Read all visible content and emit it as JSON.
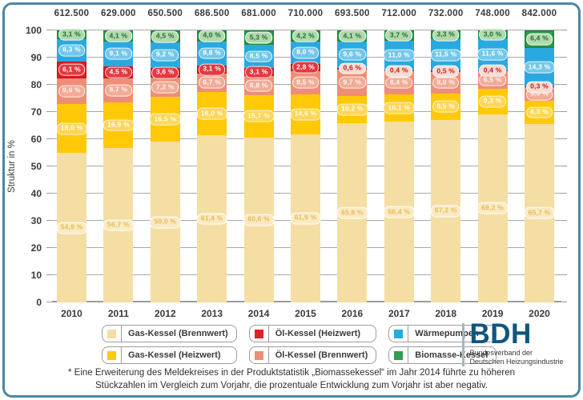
{
  "chart_data": {
    "type": "bar",
    "variant": "stacked-100-percent",
    "title": "",
    "ylabel": "Struktur in %",
    "ylim": [
      0,
      100
    ],
    "ytick_step": 10,
    "grid": true,
    "legend_position": "bottom",
    "categories": [
      "2010",
      "2011",
      "2012",
      "2013",
      "2014",
      "2015",
      "2016",
      "2017",
      "2018",
      "2019",
      "2020"
    ],
    "totals": [
      "612.500",
      "629.000",
      "650.500",
      "686.500",
      "681.000",
      "710.000",
      "693.500",
      "712.000",
      "732.000",
      "748.000",
      "842.000"
    ],
    "series": [
      {
        "name": "Gas-Kessel (Brennwert)",
        "key": "cream",
        "color": "#F5DEA3",
        "values": [
          54.9,
          56.7,
          59.0,
          61.4,
          60.6,
          61.9,
          65.8,
          66.4,
          67.2,
          69.2,
          65.7
        ]
      },
      {
        "name": "Gas-Kessel (Heizwert)",
        "key": "yellow",
        "color": "#FFC907",
        "values": [
          18.0,
          16.9,
          16.5,
          16.0,
          15.7,
          14.6,
          10.2,
          10.1,
          9.5,
          9.3,
          8.3
        ]
      },
      {
        "name": "Öl-Kessel (Brennwert)",
        "key": "salmon",
        "color": "#EE8E76",
        "values": [
          9.6,
          8.7,
          7.2,
          6.7,
          6.8,
          8.5,
          9.7,
          8.4,
          8.0,
          6.5,
          5.0
        ]
      },
      {
        "name": "Öl-Kessel (Heizwert)",
        "key": "red",
        "color": "#DD2127",
        "values": [
          6.1,
          4.5,
          3.6,
          3.1,
          3.1,
          2.8,
          0.6,
          0.4,
          0.5,
          0.4,
          0.3
        ]
      },
      {
        "name": "Wärmepumpen",
        "key": "blue",
        "color": "#2AA9E0",
        "values": [
          8.3,
          9.1,
          9.2,
          8.8,
          8.5,
          8.0,
          9.6,
          11.0,
          11.5,
          11.6,
          14.3
        ]
      },
      {
        "name": "Biomasse-Kessel",
        "key": "green",
        "color": "#2E9E4F",
        "values": [
          3.1,
          4.1,
          4.5,
          4.0,
          5.3,
          4.2,
          4.1,
          3.7,
          3.3,
          3.0,
          6.4
        ]
      }
    ]
  },
  "legend": {
    "items": [
      {
        "label": "Gas-Kessel (Brennwert)",
        "color": "#F5DEA3",
        "key": "cream"
      },
      {
        "label": "Öl-Kessel (Heizwert)",
        "color": "#DD2127",
        "key": "red"
      },
      {
        "label": "Wärmepumpen",
        "color": "#2AA9E0",
        "key": "blue"
      },
      {
        "label": "Gas-Kessel (Heizwert)",
        "color": "#FFC907",
        "key": "yellow"
      },
      {
        "label": "Öl-Kessel (Brennwert)",
        "color": "#EE8E76",
        "key": "salmon"
      },
      {
        "label": "Biomasse-Kessel",
        "color": "#2E9E4F",
        "key": "green"
      }
    ]
  },
  "footnote": {
    "line1": "* Eine Erweiterung des Meldekreises in der Produktstatistik „Biomassekessel“ im Jahr 2014 führte zu höheren",
    "line2": "Stückzahlen im Vergleich zum Vorjahr, die prozentuale Entwicklung zum Vorjahr ist aber negativ."
  },
  "logo": {
    "abbr": "BDH",
    "line1": "Bundesverband der",
    "line2": "Deutschen Heizungsindustrie"
  },
  "colors": {
    "frame": "#4C87A2",
    "grid": "#A8A8A8",
    "axis": "#9B9B9A",
    "text": "#3A3A39",
    "logo_blue": "#0F567E"
  }
}
